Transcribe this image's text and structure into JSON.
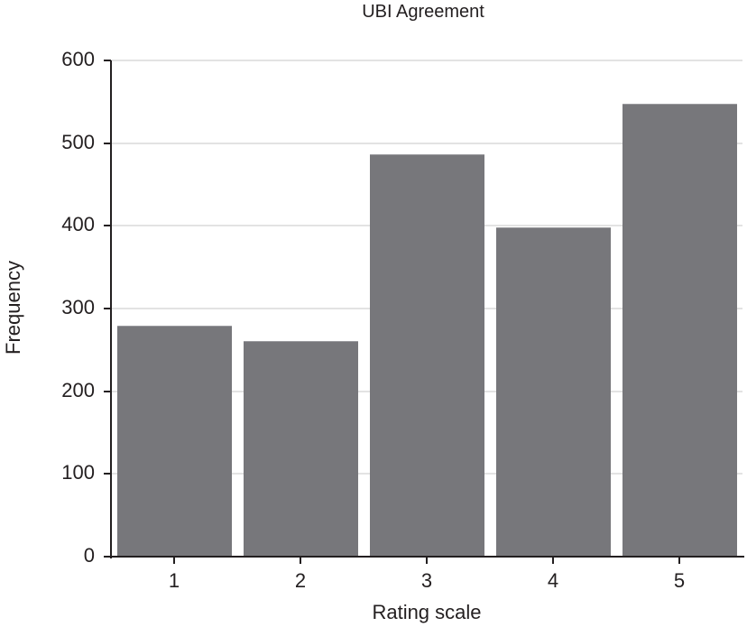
{
  "chart_data": {
    "type": "bar",
    "title": "UBI Agreement",
    "xlabel": "Rating scale",
    "ylabel": "Frequency",
    "categories": [
      "1",
      "2",
      "3",
      "4",
      "5"
    ],
    "values": [
      279,
      261,
      487,
      398,
      548
    ],
    "ylim": [
      0,
      600
    ],
    "yticks": [
      "0",
      "100",
      "200",
      "300",
      "400",
      "500",
      "600"
    ],
    "grid": true,
    "bar_color": "#77777b",
    "legend": null
  }
}
